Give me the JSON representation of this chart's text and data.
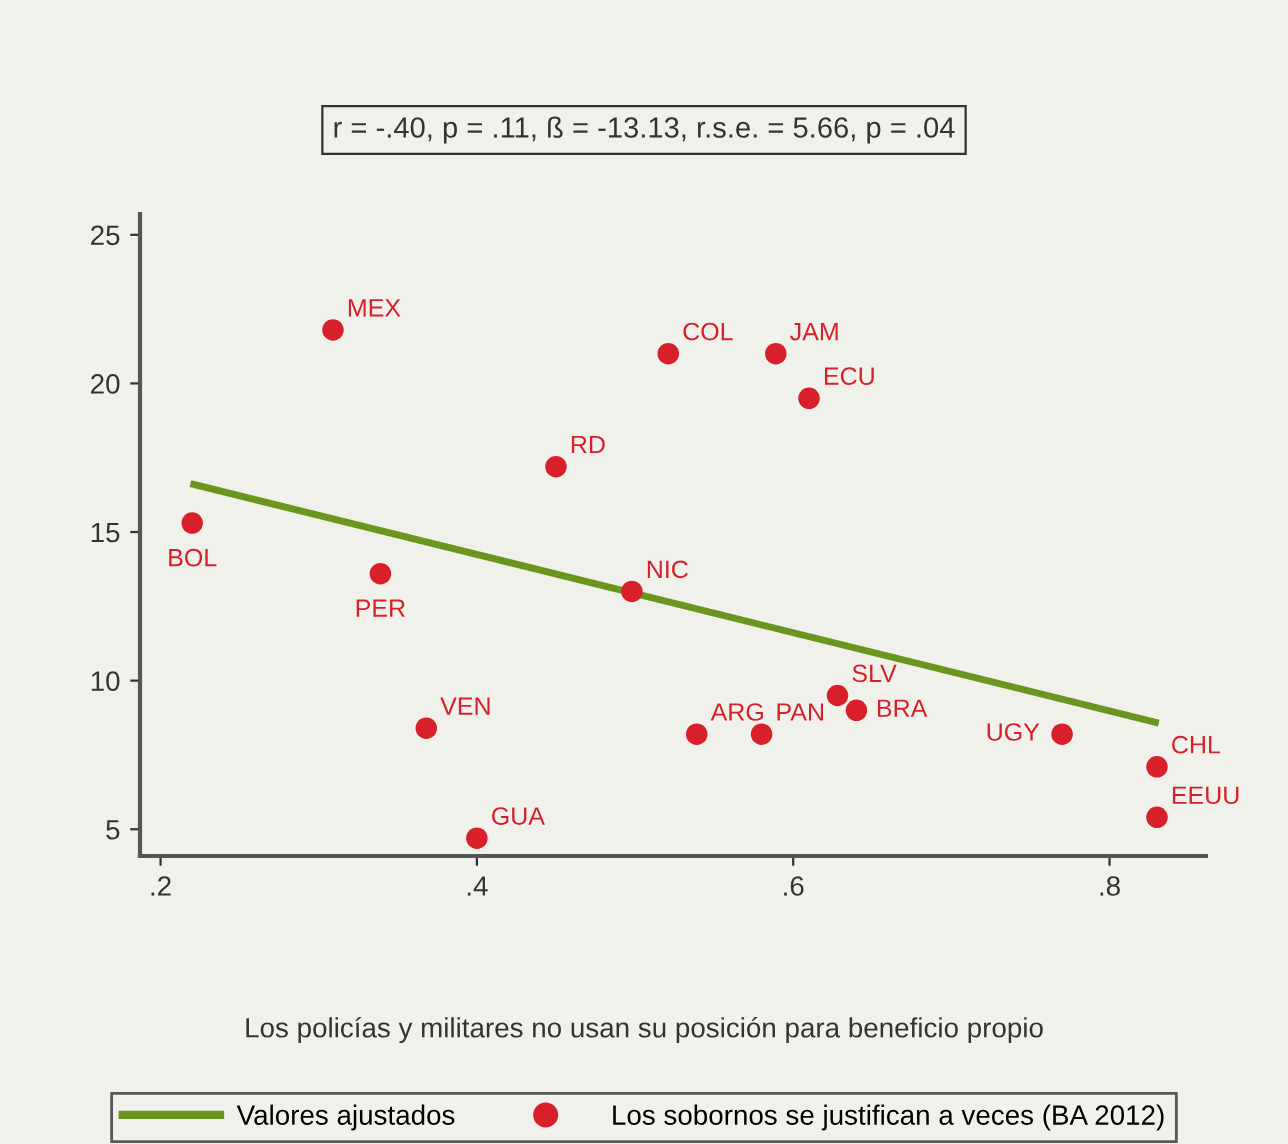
{
  "chart_data": {
    "type": "scatter",
    "title": "r = -.40, p = .11, ß = -13.13, r.s.e. = 5.66, p = .04",
    "xlabel": "Los policías y militares no usan su posición para beneficio propio",
    "xlim": [
      0.187,
      0.861
    ],
    "ylim": [
      4.1,
      25.7
    ],
    "xticks": [
      {
        "value": 0.2,
        "label": ".2"
      },
      {
        "value": 0.4,
        "label": ".4"
      },
      {
        "value": 0.6,
        "label": ".6"
      },
      {
        "value": 0.8,
        "label": ".8"
      }
    ],
    "yticks": [
      5,
      10,
      15,
      20,
      25
    ],
    "grid": false,
    "legend": "bottom",
    "series": [
      {
        "name": "Valores ajustados",
        "type": "line",
        "color": "#6a961f",
        "x": [
          0.221,
          0.829
        ],
        "values": [
          16.6,
          8.6
        ]
      },
      {
        "name": "Los sobornos se justifican a veces (BA 2012)",
        "marker": "circle",
        "color": "#d7202a",
        "x": [
          0.309,
          0.521,
          0.589,
          0.61,
          0.45,
          0.22,
          0.339,
          0.498,
          0.368,
          0.4,
          0.539,
          0.58,
          0.628,
          0.64,
          0.77,
          0.83,
          0.83
        ],
        "values": [
          21.8,
          21.0,
          21.0,
          19.5,
          17.2,
          15.3,
          13.6,
          13.0,
          8.4,
          4.7,
          8.2,
          8.2,
          9.5,
          9.0,
          8.2,
          7.1,
          5.4
        ]
      }
    ],
    "annotations": [
      {
        "text": "MEX",
        "x": 0.309,
        "y": 21.8
      },
      {
        "text": "COL",
        "x": 0.521,
        "y": 21.0
      },
      {
        "text": "JAM",
        "x": 0.589,
        "y": 21.0
      },
      {
        "text": "ECU",
        "x": 0.61,
        "y": 19.5
      },
      {
        "text": "RD",
        "x": 0.45,
        "y": 17.2
      },
      {
        "text": "BOL",
        "x": 0.22,
        "y": 15.3
      },
      {
        "text": "PER",
        "x": 0.339,
        "y": 13.6
      },
      {
        "text": "NIC",
        "x": 0.498,
        "y": 13.0
      },
      {
        "text": "VEN",
        "x": 0.368,
        "y": 8.4
      },
      {
        "text": "GUA",
        "x": 0.4,
        "y": 4.7
      },
      {
        "text": "ARG",
        "x": 0.539,
        "y": 8.2
      },
      {
        "text": "PAN",
        "x": 0.58,
        "y": 8.2
      },
      {
        "text": "SLV",
        "x": 0.628,
        "y": 9.5
      },
      {
        "text": "BRA",
        "x": 0.64,
        "y": 9.0
      },
      {
        "text": "UGY",
        "x": 0.77,
        "y": 8.2
      },
      {
        "text": "CHL",
        "x": 0.83,
        "y": 7.1
      },
      {
        "text": "EEUU",
        "x": 0.83,
        "y": 5.4
      }
    ]
  }
}
